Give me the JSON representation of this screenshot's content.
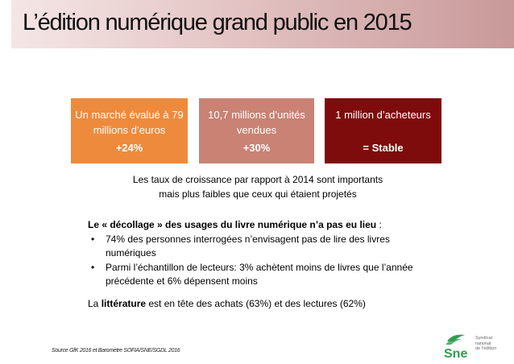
{
  "title": "L’édition numérique grand public en 2015",
  "boxes": [
    {
      "main": "Un marché évalué à 79 millions d’euros",
      "pct": "+24%",
      "color": "#ee8a3c"
    },
    {
      "main": "10,7 millions d’unités vendues",
      "pct": "+30%",
      "color": "#c98273"
    },
    {
      "main": "1 million d’acheteurs",
      "pct": "= Stable",
      "color": "#7f0c0c"
    }
  ],
  "subnote": {
    "line1": "Les taux de croissance par rapport à 2014 sont importants",
    "line2": "mais plus faibles que ceux qui étaient projetés"
  },
  "list": {
    "head_bold": "Le « décollage » des usages du livre numérique n’a pas eu lieu",
    "head_rest": " :",
    "bullets": [
      "74% des personnes interrogées n’envisagent pas de lire des livres numériques",
      "Parmi l’échantillon de lecteurs: 3% achètent moins de livres que l’année précédente et 6% dépensent moins"
    ]
  },
  "literature": {
    "pre": "La ",
    "bold": "littérature",
    "post": " est en tête des achats (63%) et des lectures (62%)"
  },
  "source": "Source GfK 2016 et Baromètre SOFIA/SNE/SGDL 2016",
  "logo": {
    "mark": "Sne",
    "tagline": [
      "Syndicat",
      "national",
      "de l’édition"
    ],
    "color": "#2e9e4f"
  }
}
